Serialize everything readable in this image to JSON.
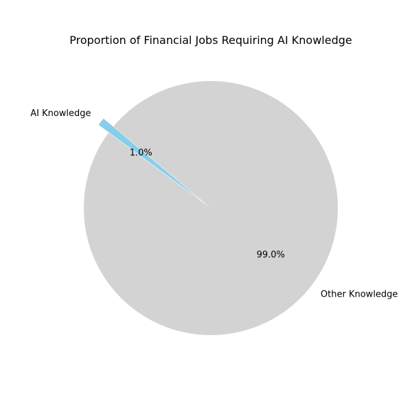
{
  "chart_data": {
    "type": "pie",
    "title": "Proportion of Financial Jobs Requiring AI Knowledge",
    "slices": [
      {
        "label": "AI Knowledge",
        "value": 1.0,
        "pct_label": "1.0%",
        "color": "#87ceeb",
        "exploded": true
      },
      {
        "label": "Other Knowledge",
        "value": 99.0,
        "pct_label": "99.0%",
        "color": "#d3d3d3",
        "exploded": false
      }
    ],
    "start_angle_deg": 140,
    "legend": "none"
  }
}
